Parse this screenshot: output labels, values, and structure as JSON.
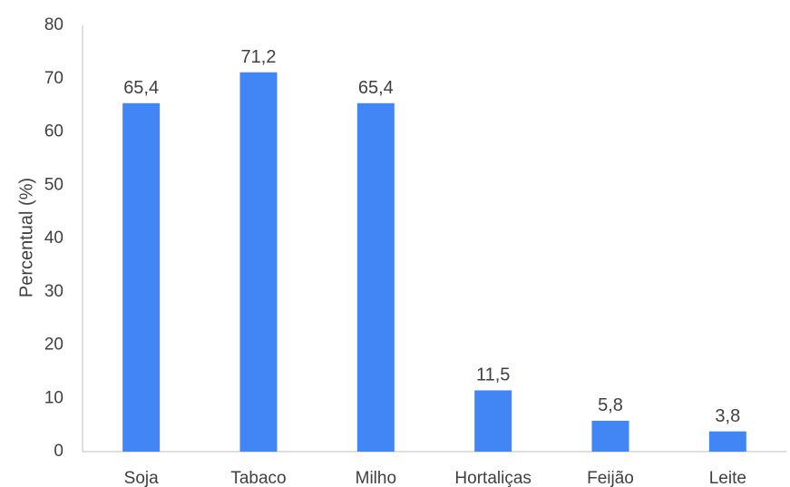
{
  "chart_data": {
    "type": "bar",
    "title": "",
    "xlabel": "",
    "ylabel": "Percentual (%)",
    "categories": [
      "Soja",
      "Tabaco",
      "Milho",
      "Hortaliças",
      "Feijão",
      "Leite"
    ],
    "values": [
      65.4,
      71.2,
      65.4,
      11.5,
      5.8,
      3.8
    ],
    "data_labels": [
      "65,4",
      "71,2",
      "65,4",
      "11,5",
      "5,8",
      "3,8"
    ],
    "ylim": [
      0,
      80
    ],
    "yticks": [
      0,
      10,
      20,
      30,
      40,
      50,
      60,
      70,
      80
    ],
    "grid": false,
    "legend": "none",
    "bar_color": "#4285F4",
    "axis_color": "#BFBFBF",
    "text_color": "#404040"
  }
}
